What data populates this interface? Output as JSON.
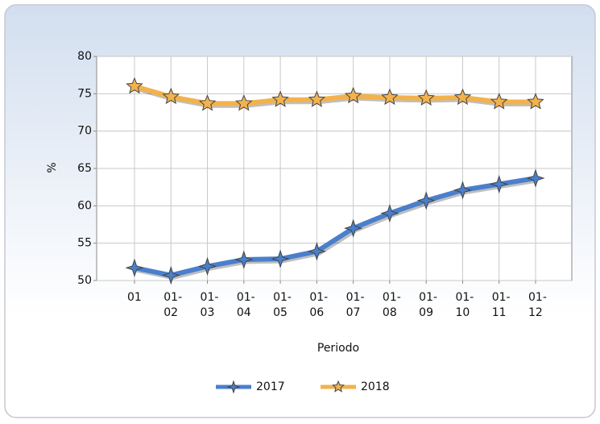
{
  "chart_data": {
    "type": "line",
    "x_label": "Periodo",
    "y_label": "%",
    "categories": [
      "01",
      "01-02",
      "01-03",
      "01-04",
      "01-05",
      "01-06",
      "01-07",
      "01-08",
      "01-09",
      "01-10",
      "01-11",
      "01-12"
    ],
    "series": [
      {
        "name": "2017",
        "color": "#4a7fcc",
        "values": [
          51.7,
          50.7,
          51.9,
          52.8,
          52.9,
          53.9,
          57.0,
          59.0,
          60.7,
          62.1,
          62.9,
          63.7
        ]
      },
      {
        "name": "2018",
        "color": "#f2b24c",
        "values": [
          76.0,
          74.6,
          73.7,
          73.7,
          74.2,
          74.2,
          74.7,
          74.5,
          74.4,
          74.5,
          73.9,
          73.9
        ]
      }
    ],
    "ylim": [
      50,
      80
    ],
    "yticks": [
      50,
      55,
      60,
      65,
      70,
      75,
      80
    ],
    "grid": true,
    "legend": "bottom"
  }
}
